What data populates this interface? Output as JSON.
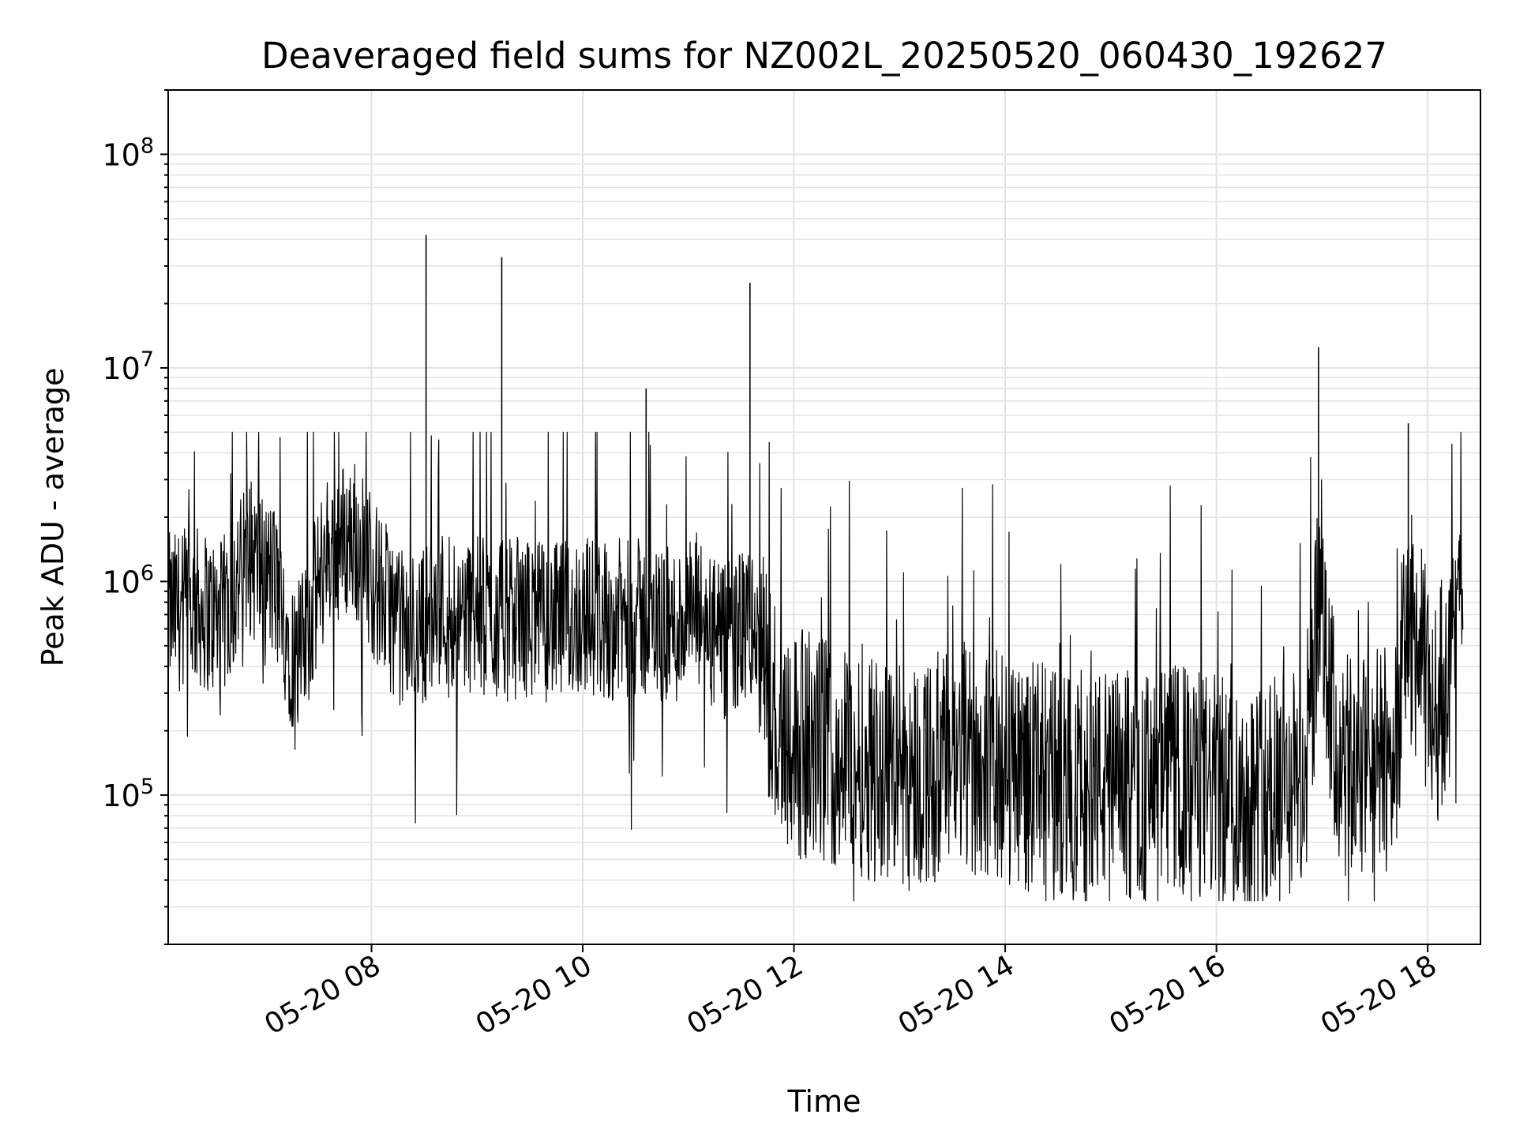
{
  "chart_data": {
    "type": "line",
    "title": "Deaveraged field sums for NZ002L_20250520_060430_192627",
    "xlabel": "Time",
    "ylabel": "Peak ADU - average",
    "yscale": "log",
    "ylim": [
      20000,
      200000000
    ],
    "xlim": [
      "2025-05-20 06:04:30",
      "2025-05-20 18:30:00"
    ],
    "x_ticks": [
      {
        "label": "05-20 08",
        "value": "2025-05-20 08:00"
      },
      {
        "label": "05-20 10",
        "value": "2025-05-20 10:00"
      },
      {
        "label": "05-20 12",
        "value": "2025-05-20 12:00"
      },
      {
        "label": "05-20 14",
        "value": "2025-05-20 14:00"
      },
      {
        "label": "05-20 16",
        "value": "2025-05-20 16:00"
      },
      {
        "label": "05-20 18",
        "value": "2025-05-20 18:00"
      }
    ],
    "y_ticks": [
      {
        "base": "10",
        "exp": "5",
        "value": 100000
      },
      {
        "base": "10",
        "exp": "6",
        "value": 1000000
      },
      {
        "base": "10",
        "exp": "7",
        "value": 10000000
      },
      {
        "base": "10",
        "exp": "8",
        "value": 100000000
      }
    ],
    "grid": true,
    "line_color": "#000000",
    "series": [
      {
        "x": [
          "2025-05-20 06:05",
          "2025-05-20 06:20",
          "2025-05-20 06:35",
          "2025-05-20 06:50",
          "2025-05-20 07:05",
          "2025-05-20 07:18",
          "2025-05-20 07:35",
          "2025-05-20 07:50",
          "2025-05-20 08:05",
          "2025-05-20 08:20",
          "2025-05-20 08:31",
          "2025-05-20 08:40",
          "2025-05-20 08:55",
          "2025-05-20 09:10",
          "2025-05-20 09:14",
          "2025-05-20 09:30",
          "2025-05-20 09:45",
          "2025-05-20 10:00",
          "2025-05-20 10:15",
          "2025-05-20 10:30",
          "2025-05-20 10:36",
          "2025-05-20 10:50",
          "2025-05-20 11:05",
          "2025-05-20 11:20",
          "2025-05-20 11:35",
          "2025-05-20 11:50",
          "2025-05-20 12:05",
          "2025-05-20 12:20",
          "2025-05-20 12:35",
          "2025-05-20 12:50",
          "2025-05-20 13:05",
          "2025-05-20 13:20",
          "2025-05-20 13:35",
          "2025-05-20 13:50",
          "2025-05-20 14:05",
          "2025-05-20 14:20",
          "2025-05-20 14:35",
          "2025-05-20 14:50",
          "2025-05-20 15:05",
          "2025-05-20 15:20",
          "2025-05-20 15:35",
          "2025-05-20 15:50",
          "2025-05-20 16:05",
          "2025-05-20 16:20",
          "2025-05-20 16:35",
          "2025-05-20 16:50",
          "2025-05-20 16:58",
          "2025-05-20 17:10",
          "2025-05-20 17:25",
          "2025-05-20 17:40",
          "2025-05-20 17:49",
          "2025-05-20 18:05",
          "2025-05-20 18:20"
        ],
        "y": [
          650000,
          700000,
          600000,
          1200000,
          900000,
          350000,
          1300000,
          1500000,
          800000,
          500000,
          42000000,
          700000,
          650000,
          600000,
          33000000,
          620000,
          580000,
          650000,
          600000,
          620000,
          8000000,
          550000,
          650000,
          450000,
          25000000,
          200000,
          150000,
          140000,
          130000,
          120000,
          110000,
          115000,
          130000,
          125000,
          115000,
          105000,
          95000,
          100000,
          98000,
          95000,
          105000,
          98000,
          90000,
          85000,
          95000,
          105000,
          12500000,
          110000,
          120000,
          130000,
          5500000,
          200000,
          900000
        ]
      }
    ]
  }
}
